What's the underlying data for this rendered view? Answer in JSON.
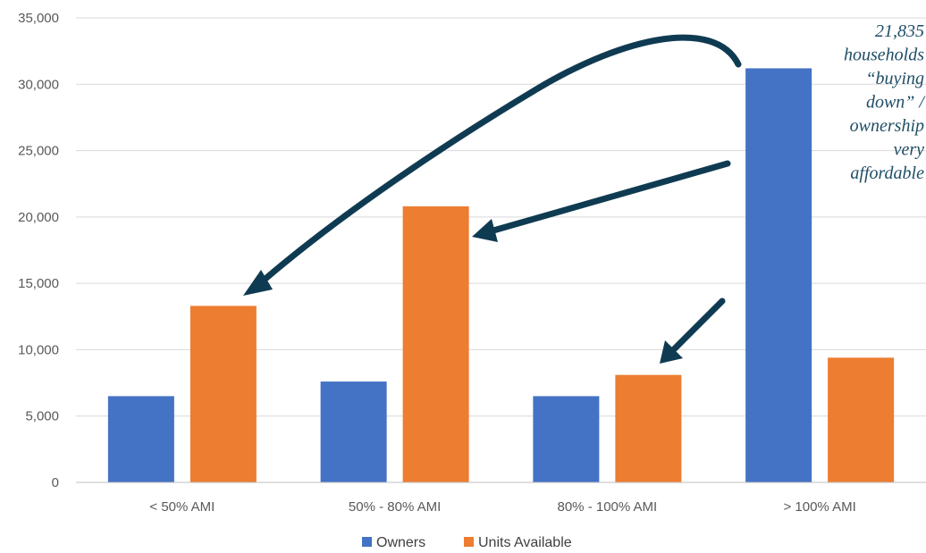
{
  "chart_data": {
    "type": "bar",
    "categories": [
      "< 50% AMI",
      "50% - 80% AMI",
      "80% - 100% AMI",
      "> 100% AMI"
    ],
    "series": [
      {
        "name": "Owners",
        "color": "#4472C4",
        "values": [
          6500,
          7600,
          6500,
          31200
        ]
      },
      {
        "name": "Units Available",
        "color": "#ED7D31",
        "values": [
          13300,
          20800,
          8100,
          9400
        ]
      }
    ],
    "ylim": [
      0,
      35000
    ],
    "yticks": [
      0,
      5000,
      10000,
      15000,
      20000,
      25000,
      30000,
      35000
    ],
    "ytick_labels": [
      "0",
      "5,000",
      "10,000",
      "15,000",
      "20,000",
      "25,000",
      "30,000",
      "35,000"
    ],
    "grid": true,
    "legend_position": "bottom",
    "title": "",
    "xlabel": "",
    "ylabel": "",
    "annotation": {
      "lines": [
        "21,835",
        "households",
        "“buying",
        "down” /",
        "ownership",
        "very",
        "affordable"
      ],
      "arrow_color": "#0f3b52"
    }
  }
}
